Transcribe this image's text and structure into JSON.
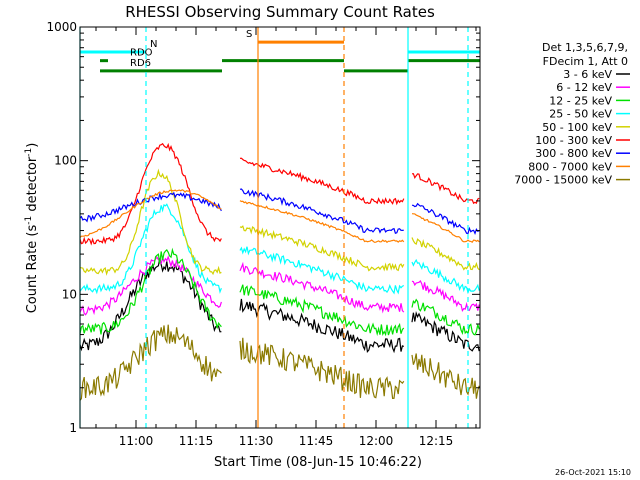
{
  "chart_data": {
    "type": "line",
    "title": "RHESSI Observing Summary Count Rates",
    "xlabel": "Start Time (08-Jun-15 10:46:22)",
    "ylabel_main": "Count Rate (s",
    "ylabel_sup1": "-1",
    "ylabel_mid": " detector",
    "ylabel_sup2": "-1",
    "ylabel_end": ")",
    "timestamp": "26-Oct-2021 15:10",
    "y_scale": "log",
    "ylim": [
      1,
      1000
    ],
    "xlim_minutes": [
      0,
      100
    ],
    "x_tick_labels": [
      {
        "label": "11:00",
        "min": 14
      },
      {
        "label": "11:15",
        "min": 29
      },
      {
        "label": "11:30",
        "min": 44
      },
      {
        "label": "11:45",
        "min": 59
      },
      {
        "label": "12:00",
        "min": 74
      },
      {
        "label": "12:15",
        "min": 89
      }
    ],
    "y_tick_labels": [
      {
        "label": "1",
        "value": 1
      },
      {
        "label": "10",
        "value": 10
      },
      {
        "label": "100",
        "value": 100
      },
      {
        "label": "1000",
        "value": 1000
      }
    ],
    "legend": {
      "header1": "Det 1,3,5,6,7,9,",
      "header2": "FDecim 1, Att 0",
      "entries": [
        {
          "name": "3 - 6 keV",
          "color": "#000000"
        },
        {
          "name": "6 - 12 keV",
          "color": "#ff00ff"
        },
        {
          "name": "12 - 25 keV",
          "color": "#00e000"
        },
        {
          "name": "25 - 50 keV",
          "color": "#00ffff"
        },
        {
          "name": "50 - 100 keV",
          "color": "#d2d200"
        },
        {
          "name": "100 - 300 keV",
          "color": "#ff0000"
        },
        {
          "name": "300 - 800 keV",
          "color": "#0000ff"
        },
        {
          "name": "800 - 7000 keV",
          "color": "#ff8000"
        },
        {
          "name": "7000 - 15000 keV",
          "color": "#8b7a00"
        }
      ]
    },
    "segments": [
      [
        0,
        35.5
      ],
      [
        40,
        81
      ],
      [
        83,
        100
      ]
    ],
    "series": [
      {
        "name": "3 - 6 keV",
        "color": "#000000",
        "base_left": 4.0,
        "base_right": 4.2,
        "peak_min": 21,
        "peak": 17,
        "width": 9,
        "noise": 0.12
      },
      {
        "name": "6 - 12 keV",
        "color": "#ff00ff",
        "base_left": 7.5,
        "base_right": 8,
        "peak_min": 21,
        "peak": 18,
        "width": 9,
        "noise": 0.08
      },
      {
        "name": "12 - 25 keV",
        "color": "#00e000",
        "base_left": 5.5,
        "base_right": 5.5,
        "peak_min": 22,
        "peak": 20,
        "width": 7,
        "noise": 0.1
      },
      {
        "name": "25 - 50 keV",
        "color": "#00ffff",
        "base_left": 11,
        "base_right": 11,
        "peak_min": 21,
        "peak": 45,
        "width": 6,
        "noise": 0.07
      },
      {
        "name": "50 - 100 keV",
        "color": "#d2d200",
        "base_left": 15,
        "base_right": 16,
        "peak_min": 20,
        "peak": 80,
        "width": 5,
        "noise": 0.06
      },
      {
        "name": "100 - 300 keV",
        "color": "#ff0000",
        "base_left": 25,
        "base_right": 50,
        "peak_min": 21,
        "peak": 130,
        "width": 6,
        "noise": 0.05
      },
      {
        "name": "300 - 800 keV",
        "color": "#0000ff",
        "base_left": 35,
        "base_right": 30,
        "peak_min": 23,
        "peak": 55,
        "width": 14,
        "noise": 0.05
      },
      {
        "name": "800 - 7000 keV",
        "color": "#ff8000",
        "base_left": 25,
        "base_right": 25,
        "peak_min": 24,
        "peak": 60,
        "width": 14,
        "noise": 0.02
      },
      {
        "name": "7000 - 15000 keV",
        "color": "#8b7a00",
        "base_left": 2.0,
        "base_right": 2.0,
        "peak_min": 22,
        "peak": 5,
        "width": 9,
        "noise": 0.2
      }
    ],
    "flag_bars": [
      {
        "label": "N",
        "color": "#00ffff",
        "value": 650,
        "ranges": [
          [
            0,
            16.5
          ],
          [
            82,
            100
          ]
        ]
      },
      {
        "label": "RDO",
        "color": "#008000",
        "value": 560,
        "ranges": [
          [
            5,
            7
          ]
        ]
      },
      {
        "label": "RD6",
        "color": "#008000",
        "value": 470,
        "ranges": [
          [
            5,
            35.5
          ]
        ]
      },
      {
        "label": "",
        "color": "#008000",
        "value": 560,
        "ranges": [
          [
            35.5,
            66
          ],
          [
            82,
            100
          ]
        ]
      },
      {
        "label": "",
        "color": "#008000",
        "value": 470,
        "ranges": [
          [
            66,
            82
          ]
        ]
      },
      {
        "label": "S",
        "color": "#ff8000",
        "value": 770,
        "ranges": [
          [
            44.5,
            66
          ]
        ]
      }
    ],
    "vlines": [
      {
        "min": 0,
        "color": "#00ffff",
        "style": "solid"
      },
      {
        "min": 16.5,
        "color": "#00ffff",
        "style": "dashed"
      },
      {
        "min": 44.5,
        "color": "#ff8000",
        "style": "solid"
      },
      {
        "min": 66,
        "color": "#ff8000",
        "style": "dashed"
      },
      {
        "min": 82,
        "color": "#00ffff",
        "style": "solid"
      },
      {
        "min": 97,
        "color": "#00ffff",
        "style": "dashed"
      }
    ]
  }
}
